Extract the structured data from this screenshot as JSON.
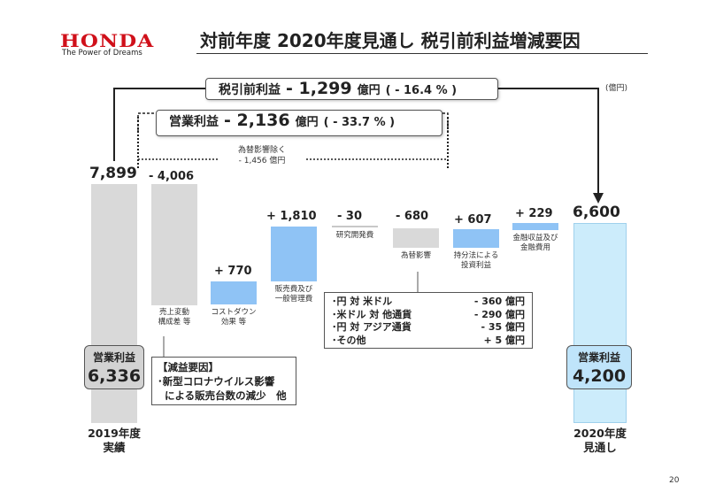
{
  "header": {
    "logo": "HONDA",
    "tagline": "The Power of Dreams",
    "title": "対前年度 2020年度見通し 税引前利益増減要因",
    "unit": "(億円)",
    "page_number": "20"
  },
  "callouts": {
    "pretax": {
      "label": "税引前利益",
      "value": "- 1,299",
      "yen": "億円",
      "pct": "( - 16.4 % )"
    },
    "operating": {
      "label": "営業利益",
      "value": "- 2,136",
      "yen": "億円",
      "pct": "( - 33.7 % )"
    },
    "fx_excluded": [
      "為替影響除く",
      "- 1,456 億円"
    ]
  },
  "chart_data": {
    "type": "bar",
    "subtype": "waterfall",
    "title": "対前年度 2020年度見通し 税引前利益増減要因",
    "unit": "(億円)",
    "categories": [
      "2019年度 実績",
      "売上変動 構成差 等",
      "コストダウン 効果 等",
      "販売費及び 一般管理費",
      "研究開発費",
      "為替影響",
      "持分法による 投資利益",
      "金融収益及び 金融費用",
      "2020年度 見通し"
    ],
    "values": [
      7899,
      -4006,
      770,
      1810,
      -30,
      -680,
      607,
      229,
      6600
    ],
    "value_labels": [
      "7,899",
      "- 4,006",
      "+ 770",
      "+ 1,810",
      "- 30",
      "- 680",
      "+ 607",
      "+ 229",
      "6,600"
    ],
    "bar_colors": [
      "#d9d9d9",
      "#d9d9d9",
      "#8fc3f5",
      "#8fc3f5",
      "#d9d9d9",
      "#d9d9d9",
      "#8fc3f5",
      "#8fc3f5",
      "#ccecfb"
    ],
    "operating_profit": {
      "2019年度": "6,336",
      "2020年度": "4,200",
      "label": "営業利益"
    }
  },
  "bars": {
    "start": {
      "value_label": "7,899",
      "axis_label": [
        "2019年度",
        "実績"
      ],
      "badge_label": "営業利益",
      "badge_value": "6,336"
    },
    "b1": {
      "value_label": "- 4,006",
      "caption": [
        "売上変動",
        "構成差 等"
      ]
    },
    "b2": {
      "value_label": "+ 770",
      "caption": [
        "コストダウン",
        "効果 等"
      ]
    },
    "b3": {
      "value_label": "+ 1,810",
      "caption": [
        "販売費及び",
        "一般管理費"
      ]
    },
    "b4": {
      "value_label": "- 30",
      "caption": [
        "研究開発費"
      ]
    },
    "b5": {
      "value_label": "- 680",
      "caption": [
        "為替影響"
      ]
    },
    "b6": {
      "value_label": "+ 607",
      "caption": [
        "持分法による",
        "投資利益"
      ]
    },
    "b7": {
      "value_label": "+ 229",
      "caption": [
        "金融収益及び",
        "金融費用"
      ]
    },
    "end": {
      "value_label": "6,600",
      "axis_label": [
        "2020年度",
        "見通し"
      ],
      "badge_label": "営業利益",
      "badge_value": "4,200"
    }
  },
  "decline_box": {
    "lines": [
      "【減益要因】",
      "･新型コロナウイルス影響",
      "  による販売台数の減少　他"
    ]
  },
  "fx_breakdown": {
    "rows": [
      {
        "label": "･円 対 米ドル",
        "value": "- 360 億円"
      },
      {
        "label": "･米ドル 対 他通貨",
        "value": "- 290 億円"
      },
      {
        "label": "･円 対 アジア通貨",
        "value": "- 35 億円"
      },
      {
        "label": "･その他",
        "value": "+ 5 億円"
      }
    ]
  }
}
